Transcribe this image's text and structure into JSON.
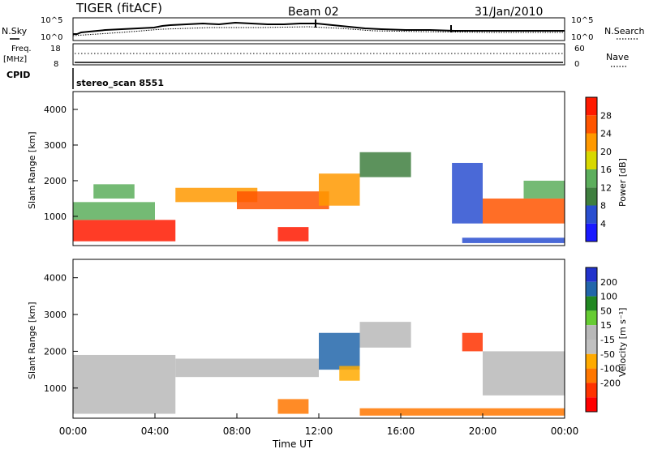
{
  "header": {
    "title": "TIGER (fitACF)",
    "beam": "Beam 02",
    "date": "31/Jan/2010"
  },
  "noise_panel": {
    "left_label": "N.Sky",
    "left_ticks": [
      "10^5",
      "10^0"
    ],
    "right_label": "N.Search",
    "right_ticks": [
      "10^5",
      "10^0"
    ]
  },
  "freq_panel": {
    "left_label": "Freq.",
    "left_unit": "[MHz]",
    "left_ticks": [
      "18",
      "8"
    ],
    "right_label": "Nave",
    "right_ticks": [
      "60",
      "0"
    ]
  },
  "cpid_panel": {
    "label": "CPID",
    "value": "stereo_scan 8551"
  },
  "colors": {
    "power": [
      "#1a1aff",
      "#2a4fd0",
      "#3f7f3f",
      "#5cae5c",
      "#d8d800",
      "#ff9900",
      "#ff5500",
      "#ff1a00"
    ],
    "velocity": [
      "#2233cc",
      "#2266aa",
      "#228822",
      "#66cc33",
      "#b8b8b8",
      "#c0c0c0",
      "#ffaa00",
      "#ff7700",
      "#ff3300",
      "#ff0000"
    ]
  },
  "chart_data": [
    {
      "type": "heatmap",
      "name": "power",
      "ylabel": "Slant Range [km]",
      "ylim": [
        180,
        4500
      ],
      "yticks": [
        1000,
        2000,
        3000,
        4000
      ],
      "xlim": [
        0,
        24
      ],
      "colorbar": {
        "label": "Power [dB]",
        "ticks": [
          4,
          8,
          12,
          16,
          20,
          24,
          28
        ]
      },
      "regions": [
        {
          "x0": 0.0,
          "x1": 5.0,
          "y0": 300,
          "y1": 900,
          "value": 30
        },
        {
          "x0": 0.0,
          "x1": 4.0,
          "y0": 900,
          "y1": 1400,
          "value": 14
        },
        {
          "x0": 1.0,
          "x1": 3.0,
          "y0": 1500,
          "y1": 1900,
          "value": 12
        },
        {
          "x0": 5.0,
          "x1": 9.0,
          "y0": 1400,
          "y1": 1800,
          "value": 20
        },
        {
          "x0": 8.0,
          "x1": 12.5,
          "y0": 1200,
          "y1": 1700,
          "value": 26
        },
        {
          "x0": 10.0,
          "x1": 11.5,
          "y0": 300,
          "y1": 700,
          "value": 30
        },
        {
          "x0": 12.0,
          "x1": 14.0,
          "y0": 1300,
          "y1": 2200,
          "value": 22
        },
        {
          "x0": 14.0,
          "x1": 16.5,
          "y0": 2100,
          "y1": 2800,
          "value": 10
        },
        {
          "x0": 19.0,
          "x1": 24.0,
          "y0": 250,
          "y1": 400,
          "value": 6
        },
        {
          "x0": 20.0,
          "x1": 24.0,
          "y0": 800,
          "y1": 1500,
          "value": 24
        },
        {
          "x0": 22.0,
          "x1": 24.0,
          "y0": 1500,
          "y1": 2000,
          "value": 12
        },
        {
          "x0": 18.5,
          "x1": 20.0,
          "y0": 800,
          "y1": 2500,
          "value": 6
        }
      ]
    },
    {
      "type": "heatmap",
      "name": "velocity",
      "ylabel": "Slant Range [km]",
      "xlabel": "Time UT",
      "ylim": [
        180,
        4500
      ],
      "yticks": [
        1000,
        2000,
        3000,
        4000
      ],
      "xlim": [
        0,
        24
      ],
      "xticks": [
        "00:00",
        "04:00",
        "08:00",
        "12:00",
        "16:00",
        "20:00",
        "00:00"
      ],
      "colorbar": {
        "label": "Velocity [m s⁻¹]",
        "ticks": [
          200,
          100,
          50,
          15,
          -15,
          -50,
          -100,
          -200
        ]
      },
      "regions": [
        {
          "x0": 0.0,
          "x1": 5.0,
          "y0": 300,
          "y1": 1900,
          "value": 0
        },
        {
          "x0": 5.0,
          "x1": 12.0,
          "y0": 1300,
          "y1": 1800,
          "value": 0
        },
        {
          "x0": 10.0,
          "x1": 11.5,
          "y0": 300,
          "y1": 700,
          "value": -90
        },
        {
          "x0": 12.0,
          "x1": 14.0,
          "y0": 1500,
          "y1": 2500,
          "value": 150
        },
        {
          "x0": 13.0,
          "x1": 14.0,
          "y0": 1200,
          "y1": 1600,
          "value": -50
        },
        {
          "x0": 14.0,
          "x1": 16.5,
          "y0": 2100,
          "y1": 2800,
          "value": 0
        },
        {
          "x0": 14.0,
          "x1": 24.0,
          "y0": 250,
          "y1": 450,
          "value": -60
        },
        {
          "x0": 20.0,
          "x1": 24.0,
          "y0": 800,
          "y1": 2000,
          "value": 0
        },
        {
          "x0": 19.0,
          "x1": 20.0,
          "y0": 2000,
          "y1": 2500,
          "value": -150
        }
      ]
    }
  ]
}
